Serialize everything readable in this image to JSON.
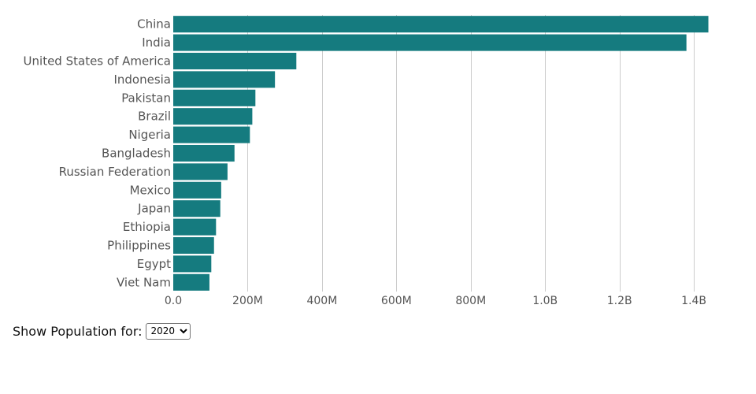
{
  "chart_data": {
    "type": "bar",
    "orientation": "horizontal",
    "categories": [
      "China",
      "India",
      "United States of America",
      "Indonesia",
      "Pakistan",
      "Brazil",
      "Nigeria",
      "Bangladesh",
      "Russian Federation",
      "Mexico",
      "Japan",
      "Ethiopia",
      "Philippines",
      "Egypt",
      "Viet Nam"
    ],
    "values": [
      1439000000,
      1380000000,
      331000000,
      273500000,
      220900000,
      212600000,
      206100000,
      164700000,
      145900000,
      128900000,
      126500000,
      115000000,
      109600000,
      102300000,
      97300000
    ],
    "xlim": [
      0,
      1440000000
    ],
    "xticks": [
      0,
      200000000,
      400000000,
      600000000,
      800000000,
      1000000000,
      1200000000,
      1400000000
    ],
    "xtick_labels": [
      "0.0",
      "200M",
      "400M",
      "600M",
      "800M",
      "1.0B",
      "1.2B",
      "1.4B"
    ],
    "grid": "vertical",
    "bar_color": "#157b7f",
    "title": "",
    "xlabel": "",
    "ylabel": ""
  },
  "controls": {
    "label": "Show Population for:",
    "selected_year": "2020"
  }
}
